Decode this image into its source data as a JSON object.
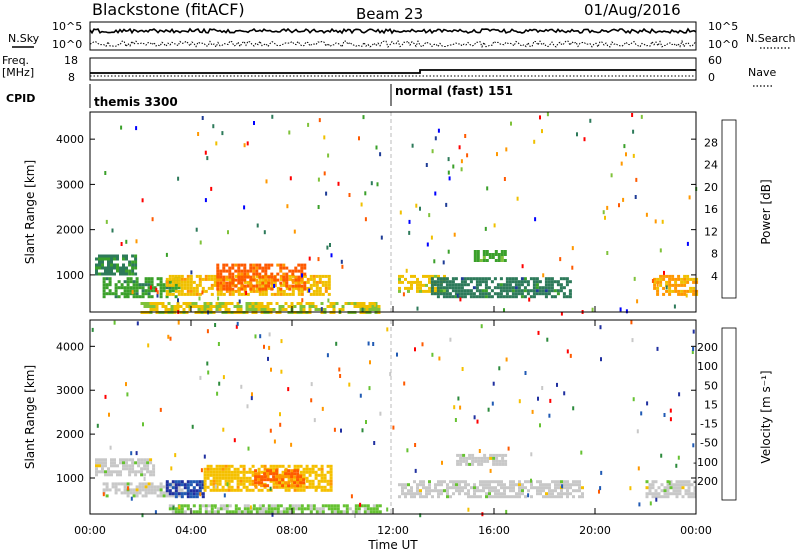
{
  "header": {
    "station": "Blackstone (fitACF)",
    "beam": "Beam 23",
    "date": "01/Aug/2016"
  },
  "top_panels": {
    "nsky_label": "N.Sky",
    "nsearch_label": "N.Search",
    "noise_ticks_left": [
      "10^5",
      "10^0"
    ],
    "noise_ticks_right": [
      "10^5",
      "10^0"
    ],
    "freq_label_line1": "Freq.",
    "freq_label_line2": "[MHz]",
    "freq_ticks": [
      "18",
      "8"
    ],
    "nave_label": "Nave",
    "nave_ticks": [
      "60",
      "0"
    ],
    "cpid_label": "CPID",
    "cpid_segments": [
      {
        "label": "themis 3300",
        "start_hour": 0
      },
      {
        "label": "normal (fast) 151",
        "start_hour": 12
      }
    ]
  },
  "x_axis": {
    "label": "Time UT",
    "ticks": [
      "00:00",
      "04:00",
      "08:00",
      "12:00",
      "16:00",
      "20:00",
      "00:00"
    ],
    "range_hours": [
      0,
      24
    ]
  },
  "y_axis": {
    "label": "Slant Range [km]",
    "ticks": [
      1000,
      2000,
      3000,
      4000
    ],
    "range_km": [
      180,
      4600
    ]
  },
  "chart_data": [
    {
      "type": "heatmap",
      "name": "power",
      "colorbar_label": "Power [dB]",
      "colorbar_ticks": [
        4,
        8,
        12,
        16,
        20,
        24,
        28
      ],
      "colorbar_range": [
        0,
        32
      ],
      "colorbar_colors": [
        "#0000ff",
        "#1e3c96",
        "#2d7a5a",
        "#3aa02a",
        "#7fc23a",
        "#f0c000",
        "#ff9800",
        "#ff5a00",
        "#ff0000"
      ],
      "x": "time UT (hours)",
      "y": "slant range (km)",
      "regions": [
        {
          "t0": 0.2,
          "t1": 1.8,
          "r0": 1000,
          "r1": 1450,
          "value": 10
        },
        {
          "t0": 0.5,
          "t1": 3.5,
          "r0": 550,
          "r1": 950,
          "value": 12
        },
        {
          "t0": 3.0,
          "t1": 9.5,
          "r0": 600,
          "r1": 1000,
          "value": 20
        },
        {
          "t0": 5.0,
          "t1": 8.5,
          "r0": 700,
          "r1": 1250,
          "value": 26
        },
        {
          "t0": 2.0,
          "t1": 11.5,
          "r0": 200,
          "r1": 400,
          "value": 18
        },
        {
          "t0": 12.2,
          "t1": 14.0,
          "r0": 650,
          "r1": 1000,
          "value": 19
        },
        {
          "t0": 13.5,
          "t1": 19.0,
          "r0": 500,
          "r1": 950,
          "value": 9
        },
        {
          "t0": 15.2,
          "t1": 16.5,
          "r0": 1300,
          "r1": 1550,
          "value": 13
        },
        {
          "t0": 22.3,
          "t1": 24.0,
          "r0": 600,
          "r1": 1000,
          "value": 22
        }
      ]
    },
    {
      "type": "heatmap",
      "name": "velocity",
      "colorbar_label": "Velocity [m s⁻¹]",
      "colorbar_ticks": [
        200,
        100,
        50,
        15,
        -15,
        -50,
        -100,
        -200
      ],
      "colorbar_range": [
        -250,
        250
      ],
      "colorbar_colors": [
        "#2030a0",
        "#205ab4",
        "#2c8a3c",
        "#66c232",
        "#c8c8c8",
        "#f5c000",
        "#ff9800",
        "#ff5a00",
        "#ff0000"
      ],
      "x": "time UT (hours)",
      "y": "slant range (km)",
      "regions": [
        {
          "t0": 0.2,
          "t1": 2.5,
          "r0": 1050,
          "r1": 1450,
          "value": 0
        },
        {
          "t0": 0.5,
          "t1": 4.0,
          "r0": 600,
          "r1": 900,
          "value": 0
        },
        {
          "t0": 3.0,
          "t1": 4.5,
          "r0": 600,
          "r1": 950,
          "value": -200
        },
        {
          "t0": 4.5,
          "t1": 9.5,
          "r0": 700,
          "r1": 1300,
          "value": 60
        },
        {
          "t0": 6.5,
          "t1": 8.5,
          "r0": 850,
          "r1": 1200,
          "value": 150
        },
        {
          "t0": 3.0,
          "t1": 11.5,
          "r0": 200,
          "r1": 400,
          "value": -40
        },
        {
          "t0": 12.2,
          "t1": 19.5,
          "r0": 550,
          "r1": 950,
          "value": 0
        },
        {
          "t0": 14.5,
          "t1": 16.5,
          "r0": 1300,
          "r1": 1550,
          "value": 0
        },
        {
          "t0": 22.0,
          "t1": 24.0,
          "r0": 550,
          "r1": 950,
          "value": 0
        }
      ]
    }
  ]
}
